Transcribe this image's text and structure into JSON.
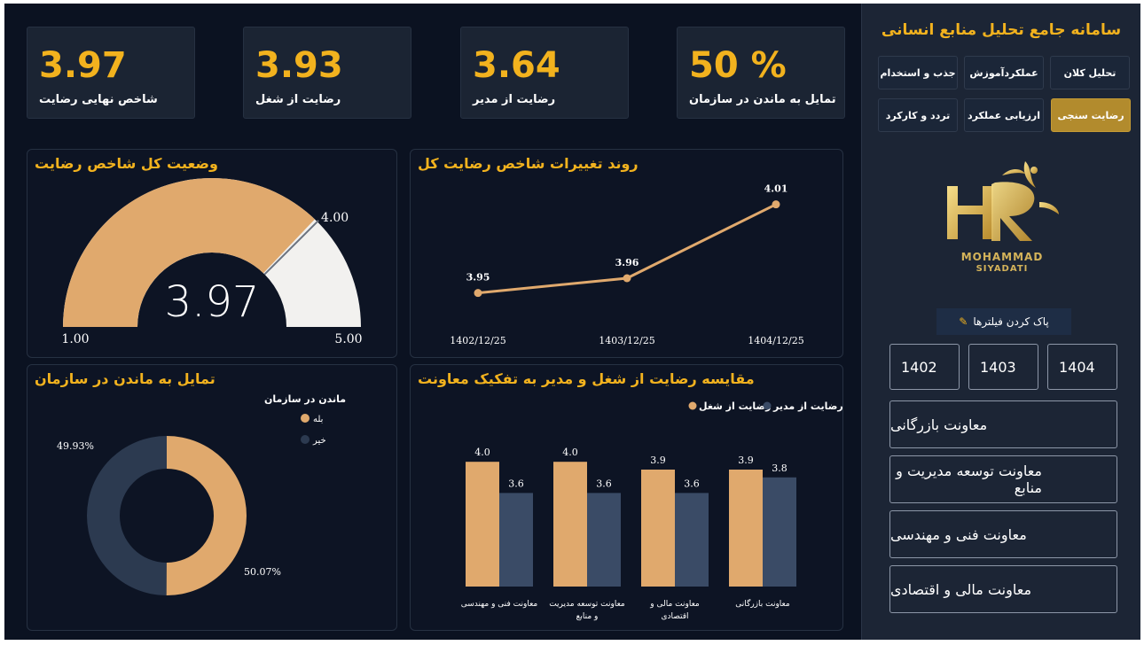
{
  "sidebar": {
    "title": "سامانه جامع تحلیل منابع انسانی",
    "nav": [
      {
        "label": "تحلیل کلان",
        "active": false
      },
      {
        "label": "عملکردآموزش",
        "active": false
      },
      {
        "label": "جذب و استخدام",
        "active": false
      },
      {
        "label": "رضایت سنجی",
        "active": true
      },
      {
        "label": "ارزیابی عملکرد",
        "active": false
      },
      {
        "label": "تردد و کارکرد",
        "active": false
      }
    ],
    "logo_text_1": "MOHAMMAD",
    "logo_text_2": "SIYADATI",
    "clear_filters": "پاک کردن فیلترها",
    "years": [
      "1402",
      "1403",
      "1404"
    ],
    "departments": [
      "معاونت بازرگانی",
      "معاونت توسعه مدیریت و منابع",
      "معاونت فنی و مهندسی",
      "معاونت مالی و اقتصادی"
    ]
  },
  "kpis": [
    {
      "value": "3.97",
      "label": "شاخص نهایی رضایت"
    },
    {
      "value": "3.93",
      "label": "رضایت از شغل"
    },
    {
      "value": "3.64",
      "label": "رضایت از مدیر"
    },
    {
      "value": "50 %",
      "label": "تمایل به ماندن در سازمان"
    }
  ],
  "colors": {
    "accent": "#f2b21e",
    "tan": "#e0a96d",
    "slate": "#3a4b66",
    "white_arc": "#f2f1ef"
  },
  "chart_data": [
    {
      "type": "gauge",
      "title": "وضعیت کل شاخص رضایت",
      "value": 3.97,
      "value_label": "3.97",
      "min": 1,
      "max": 5,
      "target": 4,
      "min_label": "1.00",
      "max_label": "5.00",
      "target_label": "4.00"
    },
    {
      "type": "line",
      "title": "روند تغییرات شاخص رضایت کل",
      "x": [
        "1402/12/25",
        "1403/12/25",
        "1404/12/25"
      ],
      "values": [
        3.95,
        3.96,
        4.01
      ],
      "labels": [
        "3.95",
        "3.96",
        "4.01"
      ]
    },
    {
      "type": "pie",
      "title": "تمایل به ماندن در سازمان",
      "legend_title": "ماندن در سازمان",
      "slices": [
        {
          "name": "بله",
          "value": 50.07,
          "label": "50.07%",
          "color": "#e0a96d"
        },
        {
          "name": "خیر",
          "value": 49.93,
          "label": "49.93%",
          "color": "#2c3a50"
        }
      ]
    },
    {
      "type": "bar",
      "title": "مقایسه رضایت از شغل و مدیر به تفکیک معاونت",
      "categories": [
        "معاونت فنی و مهندسی",
        "معاونت توسعه مدیریت و منابع",
        "معاونت مالی و اقتصادی",
        "معاونت بازرگانی"
      ],
      "series": [
        {
          "name": "رضایت از شغل",
          "values": [
            4.0,
            4.0,
            3.9,
            3.9
          ],
          "labels": [
            "4.0",
            "4.0",
            "3.9",
            "3.9"
          ],
          "color": "#e0a96d"
        },
        {
          "name": "رضایت از مدیر",
          "values": [
            3.6,
            3.6,
            3.6,
            3.8
          ],
          "labels": [
            "3.6",
            "3.6",
            "3.6",
            "3.8"
          ],
          "color": "#3a4b66"
        }
      ],
      "legend_position": "top-right"
    }
  ]
}
